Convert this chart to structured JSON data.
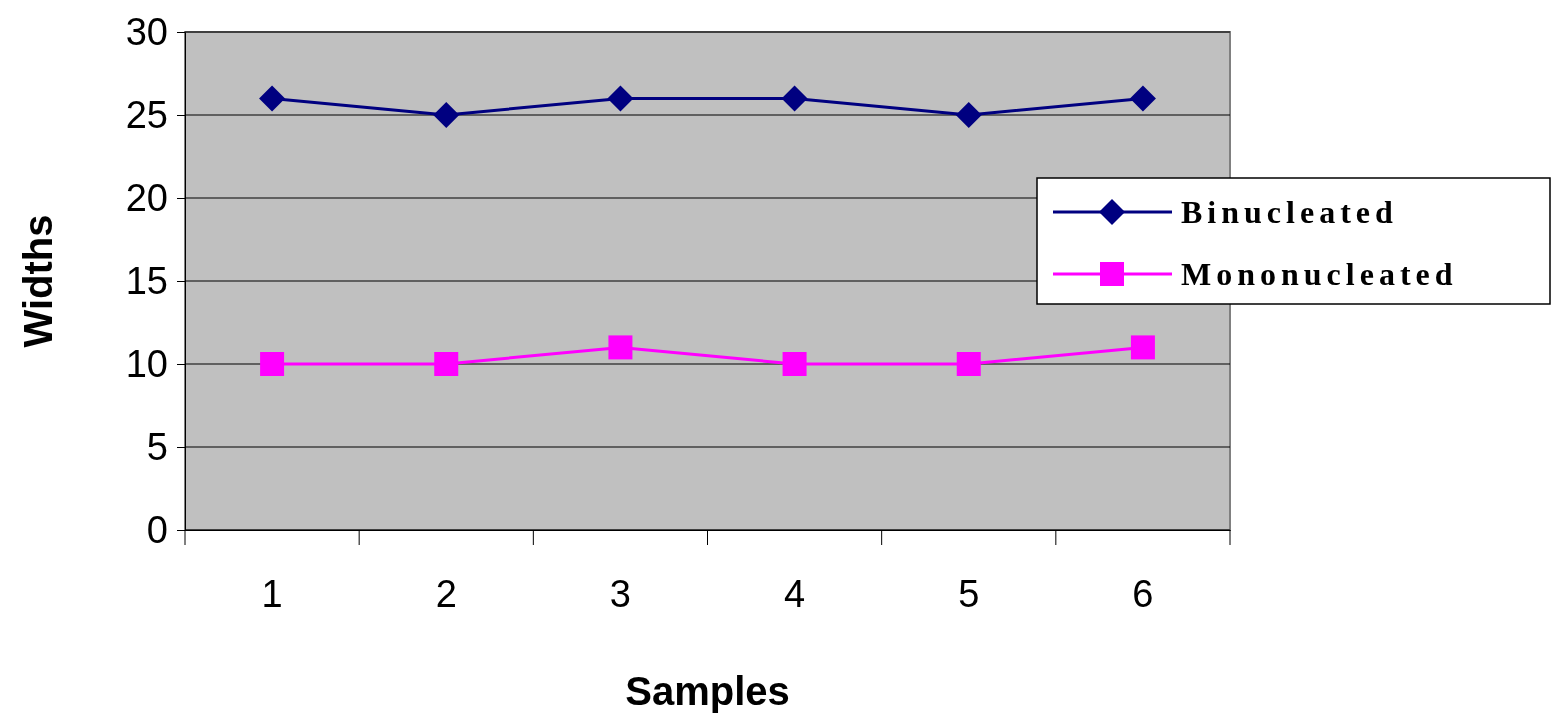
{
  "chart_data": {
    "type": "line",
    "xlabel": "Samples",
    "ylabel": "Widths",
    "categories": [
      "1",
      "2",
      "3",
      "4",
      "5",
      "6"
    ],
    "series": [
      {
        "name": "Binucleated",
        "color": "#000080",
        "values": [
          26,
          25,
          26,
          26,
          25,
          26
        ],
        "marker": "diamond"
      },
      {
        "name": "Mononucleated",
        "color": "#ff00ff",
        "values": [
          10,
          10,
          11,
          10,
          10,
          11
        ],
        "marker": "square"
      }
    ],
    "ylim": [
      0,
      30
    ],
    "yticks": [
      0,
      5,
      10,
      15,
      20,
      25,
      30
    ],
    "grid": "y",
    "legend": "right"
  }
}
